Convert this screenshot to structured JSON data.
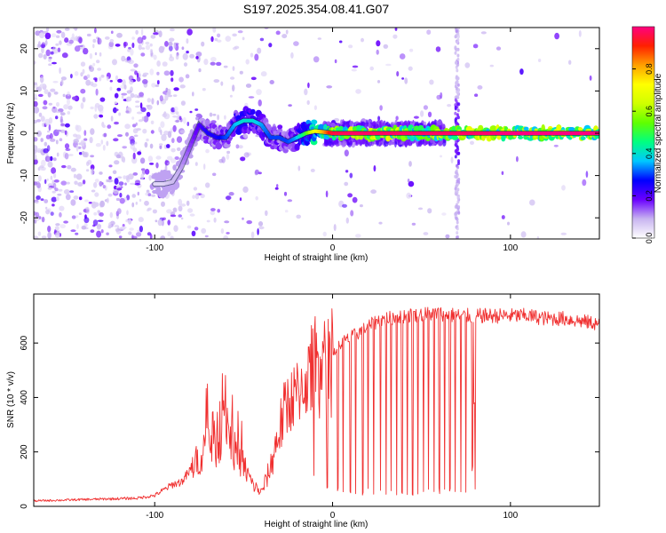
{
  "figure_title": "S197.2025.354.08.41.G07",
  "chart_data": [
    {
      "type": "heatmap",
      "title": "S197.2025.354.08.41.G07",
      "xlabel": "Height of straight line (km)",
      "ylabel": "Frequency (Hz)",
      "xlim": [
        -168,
        150
      ],
      "ylim": [
        -25,
        25
      ],
      "x_ticks": [
        -100,
        0,
        100
      ],
      "x_tick_labels": [
        "-100",
        "0",
        "100"
      ],
      "y_ticks": [
        -20,
        -10,
        0,
        10,
        20
      ],
      "y_tick_labels": [
        "-20",
        "-10",
        "0",
        "10",
        "20"
      ],
      "ridge_x": [
        -100,
        -95,
        -90,
        -85,
        -80,
        -75,
        -70,
        -65,
        -60,
        -55,
        -50,
        -45,
        -40,
        -35,
        -30,
        -25,
        -20,
        -15,
        -10,
        -5,
        0,
        10,
        20,
        40,
        60,
        80,
        100,
        120,
        150
      ],
      "ridge_y": [
        -12,
        -12,
        -11.5,
        -8,
        -3,
        2,
        0,
        -1,
        -1,
        2,
        3,
        3,
        2,
        -1,
        -1,
        -2,
        -1,
        0,
        0.5,
        0.3,
        0,
        0,
        0,
        0,
        0,
        0,
        0,
        0,
        0
      ],
      "ridge_amplitude": [
        0.05,
        0.05,
        0.08,
        0.1,
        0.15,
        0.2,
        0.25,
        0.25,
        0.3,
        0.35,
        0.4,
        0.4,
        0.35,
        0.3,
        0.3,
        0.3,
        0.35,
        0.5,
        0.7,
        0.8,
        0.95,
        0.98,
        0.98,
        0.98,
        0.98,
        0.98,
        1.0,
        1.0,
        1.0
      ],
      "colorbar": {
        "label": "Normalized spectral amplitude",
        "range": [
          0,
          1
        ],
        "ticks": [
          0.0,
          0.2,
          0.4,
          0.6,
          0.8
        ],
        "tick_labels": [
          "0.0",
          "0.2",
          "0.4",
          "0.6",
          "0.8"
        ],
        "colors": [
          "#ffffff",
          "#c8b4f0",
          "#6a00ff",
          "#0000ff",
          "#00c8ff",
          "#00ff80",
          "#60ff00",
          "#d0ff00",
          "#ffff00",
          "#ffa000",
          "#ff2000",
          "#ff0080"
        ]
      }
    },
    {
      "type": "line",
      "xlabel": "Height of straight line (km)",
      "ylabel": "SNR (10 * v/v)",
      "xlim": [
        -168,
        150
      ],
      "ylim": [
        0,
        780
      ],
      "x_ticks": [
        -100,
        0,
        100
      ],
      "x_tick_labels": [
        "-100",
        "0",
        "100"
      ],
      "y_ticks": [
        0,
        200,
        400,
        600
      ],
      "y_tick_labels": [
        "0",
        "200",
        "400",
        "600"
      ],
      "color": "#f03030",
      "series": [
        {
          "name": "SNR",
          "x": [
            -168,
            -140,
            -110,
            -100,
            -95,
            -90,
            -85,
            -80,
            -75,
            -70,
            -65,
            -60,
            -55,
            -50,
            -45,
            -40,
            -35,
            -30,
            -25,
            -20,
            -15,
            -10,
            -5,
            0,
            5,
            10,
            15,
            20,
            25,
            30,
            40,
            50,
            60,
            70,
            80,
            90,
            100,
            110,
            120,
            130,
            140,
            150
          ],
          "y": [
            20,
            25,
            30,
            40,
            60,
            80,
            90,
            130,
            180,
            250,
            220,
            330,
            200,
            150,
            80,
            50,
            140,
            280,
            380,
            420,
            460,
            520,
            560,
            560,
            600,
            620,
            640,
            660,
            680,
            690,
            700,
            705,
            710,
            700,
            700,
            700,
            700,
            700,
            690,
            690,
            680,
            670
          ]
        }
      ],
      "dropouts_x": [
        -3,
        3,
        6,
        10,
        13,
        17,
        20,
        23,
        27,
        30,
        33,
        36,
        39,
        42,
        45,
        48,
        51,
        54,
        57,
        60,
        63,
        66,
        69,
        72,
        75,
        80
      ]
    }
  ]
}
